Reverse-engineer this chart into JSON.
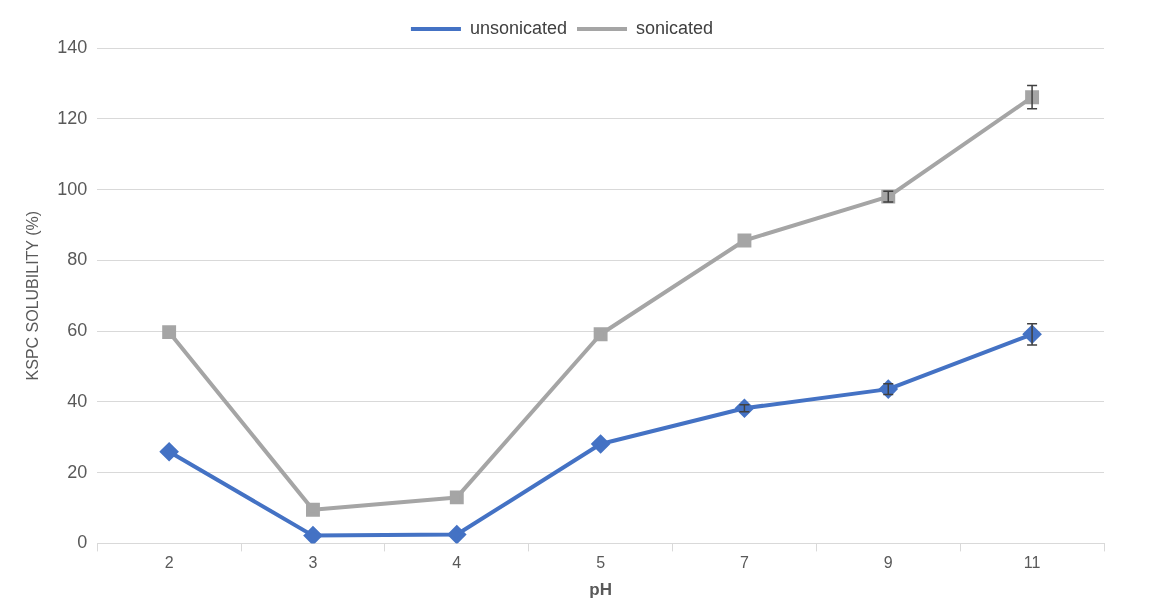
{
  "chart_data": {
    "type": "line",
    "xlabel": "pH",
    "ylabel": "KSPC SOLUBILITY (%)",
    "categories": [
      "2",
      "3",
      "4",
      "5",
      "7",
      "9",
      "11"
    ],
    "series": [
      {
        "name": "unsonicated",
        "color": "#4472c4",
        "marker": "diamond",
        "values": [
          25.9,
          2.2,
          2.5,
          28.1,
          38.2,
          43.6,
          59.1
        ],
        "errors": [
          null,
          null,
          null,
          null,
          1,
          1.5,
          3
        ]
      },
      {
        "name": "sonicated",
        "color": "#a5a5a5",
        "marker": "square",
        "values": [
          59.7,
          9.5,
          13,
          59.1,
          85.6,
          98,
          126.1
        ],
        "errors": [
          null,
          null,
          null,
          null,
          null,
          1.5,
          3.3
        ]
      }
    ],
    "ylim": [
      0,
      140
    ],
    "yticks": [
      0,
      20,
      40,
      60,
      80,
      100,
      120,
      140
    ],
    "grid": "y",
    "legend": "top"
  }
}
